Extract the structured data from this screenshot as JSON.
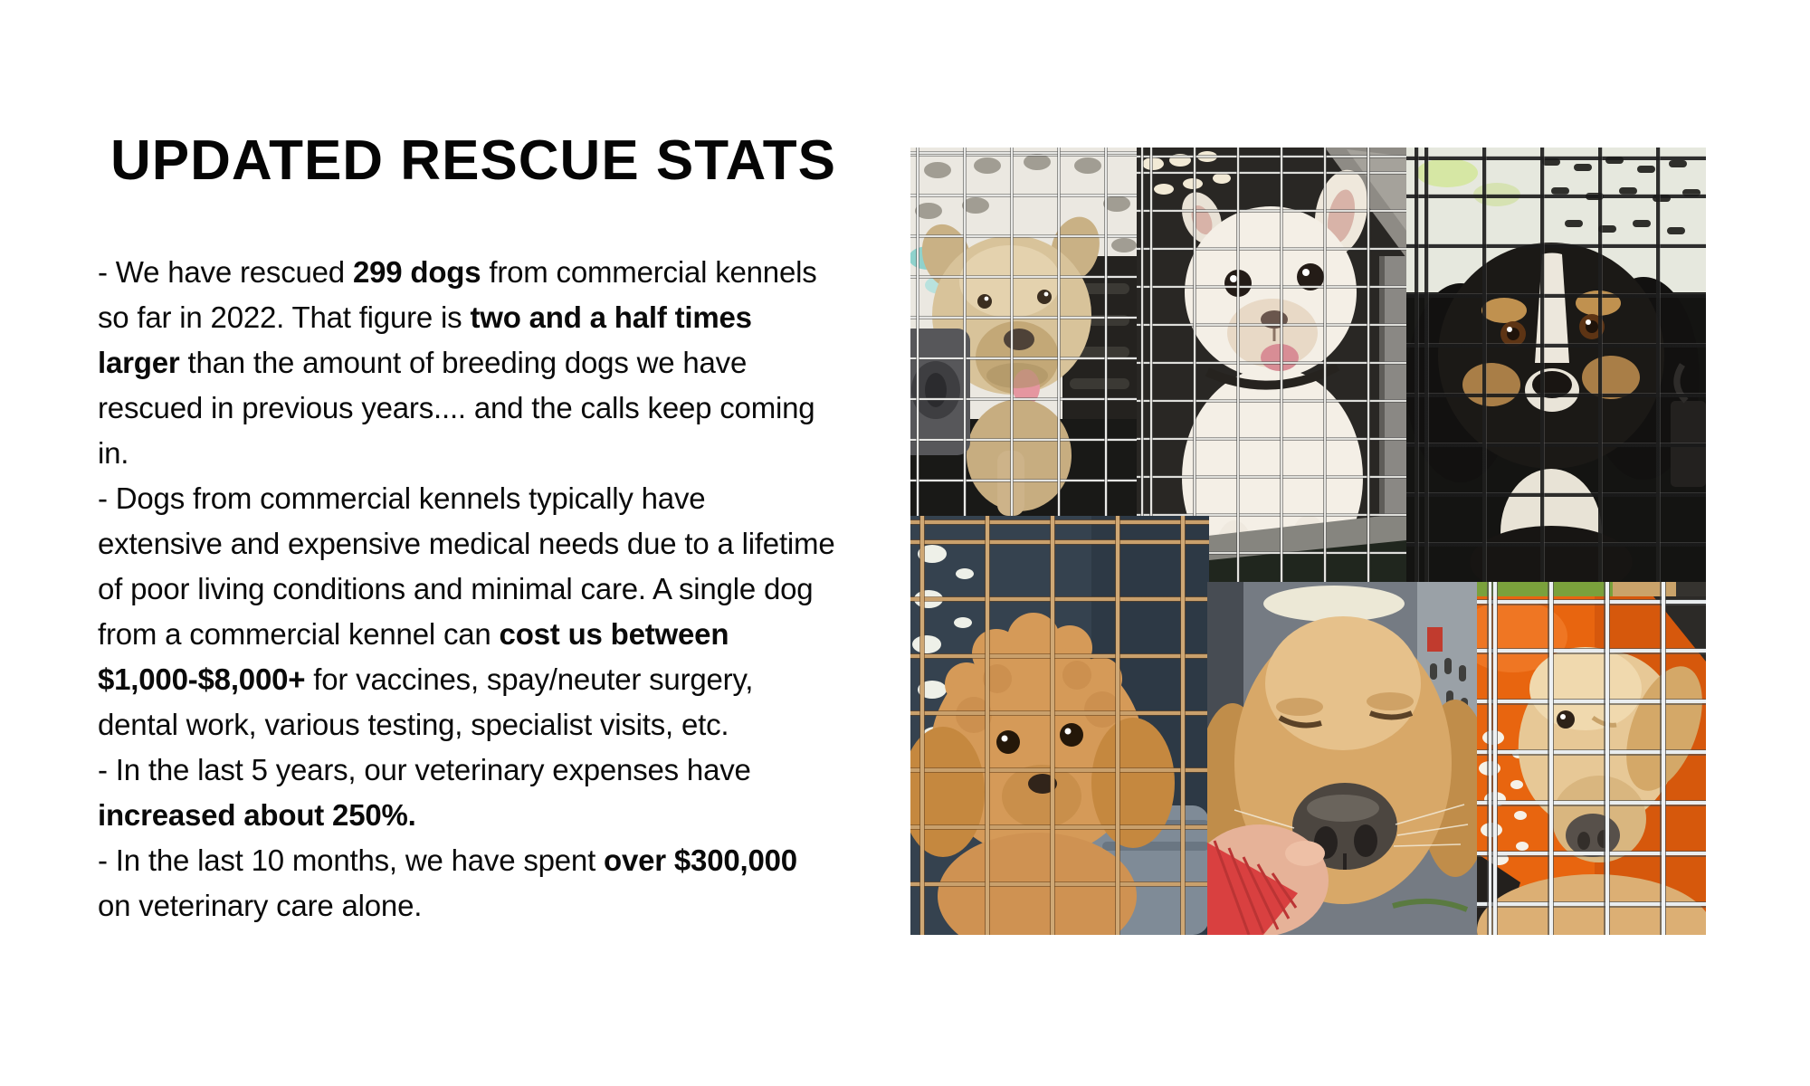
{
  "page": {
    "background": "#ffffff",
    "text_color": "#0a0a0a"
  },
  "title": "UPDATED RESCUE STATS",
  "body": {
    "lines": [
      [
        {
          "t": "- We have rescued ",
          "b": false
        },
        {
          "t": "299 dogs",
          "b": true
        },
        {
          "t": " from commercial kennels",
          "b": false
        }
      ],
      [
        {
          "t": "so far in 2022. That figure is ",
          "b": false
        },
        {
          "t": "two and a half times",
          "b": true
        }
      ],
      [
        {
          "t": "larger",
          "b": true
        },
        {
          "t": " than the amount of breeding dogs we have",
          "b": false
        }
      ],
      [
        {
          "t": "rescued in previous years.... and the calls keep coming",
          "b": false
        }
      ],
      [
        {
          "t": "in.",
          "b": false
        }
      ],
      [
        {
          "t": "- Dogs from commercial kennels typically have",
          "b": false
        }
      ],
      [
        {
          "t": "extensive and expensive medical needs due to a lifetime",
          "b": false
        }
      ],
      [
        {
          "t": "of poor living conditions and minimal care. A single dog",
          "b": false
        }
      ],
      [
        {
          "t": "from a commercial kennel can ",
          "b": false
        },
        {
          "t": "cost us between",
          "b": true
        }
      ],
      [
        {
          "t": "$1,000-$8,000+",
          "b": true
        },
        {
          "t": " for vaccines, spay/neuter surgery,",
          "b": false
        }
      ],
      [
        {
          "t": "dental work, various testing, specialist visits, etc.",
          "b": false
        }
      ],
      [
        {
          "t": "- In the last 5 years, our veterinary expenses have",
          "b": false
        }
      ],
      [
        {
          "t": "increased about 250%.",
          "b": true
        }
      ],
      [
        {
          "t": "- In the last 10 months, we have spent ",
          "b": false
        },
        {
          "t": "over $300,000",
          "b": true
        }
      ],
      [
        {
          "t": "on veterinary care alone.",
          "b": false
        }
      ]
    ]
  },
  "collage": {
    "photos": [
      {
        "id": "tan-terrier-in-crate",
        "description": "Scruffy tan terrier looking out through a metal wire crate door, gray plastic latch in the foreground, tongue out",
        "colors": {
          "fur": "#d8c39a",
          "crate_wall": "#ebe8e1",
          "interior": "#1b1b18",
          "latch": "#57575a",
          "tongue": "#e596a0"
        }
      },
      {
        "id": "white-french-bulldog-in-crate",
        "description": "White French bulldog sitting inside a dark travel crate behind a wire door, big dark eyes, tongue out",
        "colors": {
          "fur": "#f4efe6",
          "interior": "#292724",
          "tongue": "#d88d95",
          "sill": "#86857f"
        }
      },
      {
        "id": "black-and-tan-spaniel-in-crate",
        "description": "Black and tan spaniel with damp fur looking through dark wire mesh of a travel kennel, light wall behind",
        "colors": {
          "fur": "#1b1916",
          "tan_markings": "#c0914f",
          "wall": "#e6e8de",
          "blaze": "#ece7dc"
        }
      },
      {
        "id": "apricot-poodle-puppy-in-crate",
        "description": "Curly apricot poodle puppy behind rusty crate wire with a dark blue crate interior and gray crate base",
        "colors": {
          "fur": "#d59a58",
          "interior": "#35424f",
          "crate_base": "#7f8b97"
        }
      },
      {
        "id": "golden-retriever-selfie",
        "description": "Close-up of a golden retriever's face with squinting eyes, chin held by a hand in a red ribbed sleeve inside a vehicle",
        "colors": {
          "fur": "#d8a868",
          "nose": "#4c4640",
          "sleeve": "#d94040",
          "hand": "#e6b298",
          "tag": "#c13b2e"
        }
      },
      {
        "id": "golden-dog-in-orange-crate",
        "description": "Golden dog looking down behind thick chrome crate bars inside a bright orange kennel, grass visible at top",
        "colors": {
          "fur": "#e7c896",
          "crate": "#e8650f",
          "grass": "#7aa13c",
          "nose": "#57504a"
        }
      }
    ]
  }
}
